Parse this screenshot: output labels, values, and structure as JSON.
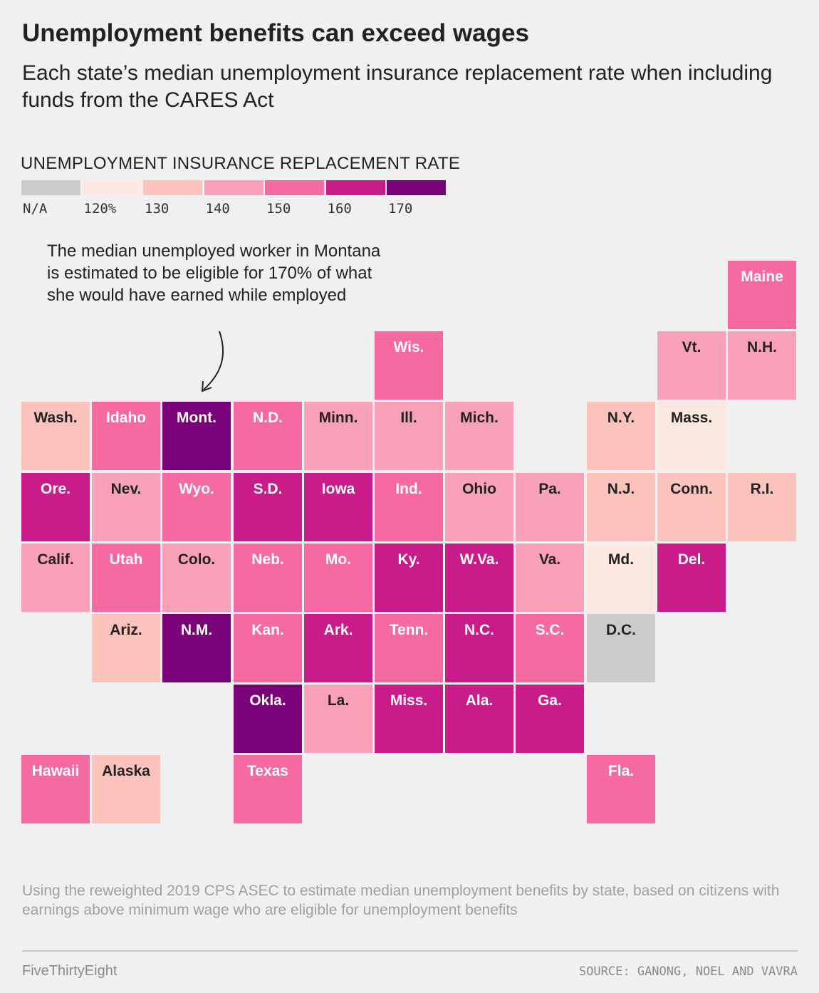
{
  "header": {
    "title": "Unemployment benefits can exceed wages",
    "subtitle": "Each state’s median unemployment insurance replacement rate when including funds from the CARES Act"
  },
  "legend": {
    "title": "UNEMPLOYMENT INSURANCE REPLACEMENT RATE",
    "items": [
      {
        "label": "N/A",
        "color": "#cbcbcb"
      },
      {
        "label": "120%",
        "color": "#fde8e2"
      },
      {
        "label": "130",
        "color": "#fcc3bd"
      },
      {
        "label": "140",
        "color": "#f8a1b8"
      },
      {
        "label": "150",
        "color": "#f76aa1"
      },
      {
        "label": "160",
        "color": "#c91c8a"
      },
      {
        "label": "170",
        "color": "#7a0177"
      }
    ]
  },
  "annotation": {
    "text": "The median unemployed worker in Montana is estimated to be eligible for 170% of what she would have earned while employed"
  },
  "chart_data": {
    "type": "tile-grid-map",
    "title": "Unemployment benefits can exceed wages",
    "legend_title": "UNEMPLOYMENT INSURANCE REPLACEMENT RATE",
    "bins": [
      "N/A",
      "120%",
      "130",
      "140",
      "150",
      "160",
      "170"
    ],
    "tiles": [
      {
        "state": "Maine",
        "col": 10,
        "row": 0,
        "bin": 4
      },
      {
        "state": "Wis.",
        "col": 5,
        "row": 1,
        "bin": 4
      },
      {
        "state": "Vt.",
        "col": 9,
        "row": 1,
        "bin": 3
      },
      {
        "state": "N.H.",
        "col": 10,
        "row": 1,
        "bin": 3
      },
      {
        "state": "Wash.",
        "col": 0,
        "row": 2,
        "bin": 2
      },
      {
        "state": "Idaho",
        "col": 1,
        "row": 2,
        "bin": 4
      },
      {
        "state": "Mont.",
        "col": 2,
        "row": 2,
        "bin": 6
      },
      {
        "state": "N.D.",
        "col": 3,
        "row": 2,
        "bin": 4
      },
      {
        "state": "Minn.",
        "col": 4,
        "row": 2,
        "bin": 3
      },
      {
        "state": "Ill.",
        "col": 5,
        "row": 2,
        "bin": 3
      },
      {
        "state": "Mich.",
        "col": 6,
        "row": 2,
        "bin": 3
      },
      {
        "state": "N.Y.",
        "col": 8,
        "row": 2,
        "bin": 2
      },
      {
        "state": "Mass.",
        "col": 9,
        "row": 2,
        "bin": 1
      },
      {
        "state": "Ore.",
        "col": 0,
        "row": 3,
        "bin": 5
      },
      {
        "state": "Nev.",
        "col": 1,
        "row": 3,
        "bin": 3
      },
      {
        "state": "Wyo.",
        "col": 2,
        "row": 3,
        "bin": 4
      },
      {
        "state": "S.D.",
        "col": 3,
        "row": 3,
        "bin": 5
      },
      {
        "state": "Iowa",
        "col": 4,
        "row": 3,
        "bin": 5
      },
      {
        "state": "Ind.",
        "col": 5,
        "row": 3,
        "bin": 4
      },
      {
        "state": "Ohio",
        "col": 6,
        "row": 3,
        "bin": 3
      },
      {
        "state": "Pa.",
        "col": 7,
        "row": 3,
        "bin": 3
      },
      {
        "state": "N.J.",
        "col": 8,
        "row": 3,
        "bin": 2
      },
      {
        "state": "Conn.",
        "col": 9,
        "row": 3,
        "bin": 2
      },
      {
        "state": "R.I.",
        "col": 10,
        "row": 3,
        "bin": 2
      },
      {
        "state": "Calif.",
        "col": 0,
        "row": 4,
        "bin": 3
      },
      {
        "state": "Utah",
        "col": 1,
        "row": 4,
        "bin": 4
      },
      {
        "state": "Colo.",
        "col": 2,
        "row": 4,
        "bin": 3
      },
      {
        "state": "Neb.",
        "col": 3,
        "row": 4,
        "bin": 4
      },
      {
        "state": "Mo.",
        "col": 4,
        "row": 4,
        "bin": 4
      },
      {
        "state": "Ky.",
        "col": 5,
        "row": 4,
        "bin": 5
      },
      {
        "state": "W.Va.",
        "col": 6,
        "row": 4,
        "bin": 5
      },
      {
        "state": "Va.",
        "col": 7,
        "row": 4,
        "bin": 3
      },
      {
        "state": "Md.",
        "col": 8,
        "row": 4,
        "bin": 1
      },
      {
        "state": "Del.",
        "col": 9,
        "row": 4,
        "bin": 5
      },
      {
        "state": "Ariz.",
        "col": 1,
        "row": 5,
        "bin": 2
      },
      {
        "state": "N.M.",
        "col": 2,
        "row": 5,
        "bin": 6
      },
      {
        "state": "Kan.",
        "col": 3,
        "row": 5,
        "bin": 4
      },
      {
        "state": "Ark.",
        "col": 4,
        "row": 5,
        "bin": 5
      },
      {
        "state": "Tenn.",
        "col": 5,
        "row": 5,
        "bin": 4
      },
      {
        "state": "N.C.",
        "col": 6,
        "row": 5,
        "bin": 5
      },
      {
        "state": "S.C.",
        "col": 7,
        "row": 5,
        "bin": 4
      },
      {
        "state": "D.C.",
        "col": 8,
        "row": 5,
        "bin": 0
      },
      {
        "state": "Okla.",
        "col": 3,
        "row": 6,
        "bin": 6
      },
      {
        "state": "La.",
        "col": 4,
        "row": 6,
        "bin": 3
      },
      {
        "state": "Miss.",
        "col": 5,
        "row": 6,
        "bin": 5
      },
      {
        "state": "Ala.",
        "col": 6,
        "row": 6,
        "bin": 5
      },
      {
        "state": "Ga.",
        "col": 7,
        "row": 6,
        "bin": 5
      },
      {
        "state": "Hawaii",
        "col": 0,
        "row": 7,
        "bin": 4
      },
      {
        "state": "Alaska",
        "col": 1,
        "row": 7,
        "bin": 2
      },
      {
        "state": "Texas",
        "col": 3,
        "row": 7,
        "bin": 4
      },
      {
        "state": "Fla.",
        "col": 8,
        "row": 7,
        "bin": 4
      }
    ]
  },
  "footer": {
    "note": "Using the reweighted 2019 CPS ASEC to estimate median unemployment benefits by state, based on citizens with earnings above minimum wage who are eligible for unemployment benefits",
    "brand": "FiveThirtyEight",
    "source": "SOURCE: GANONG, NOEL AND VAVRA"
  }
}
